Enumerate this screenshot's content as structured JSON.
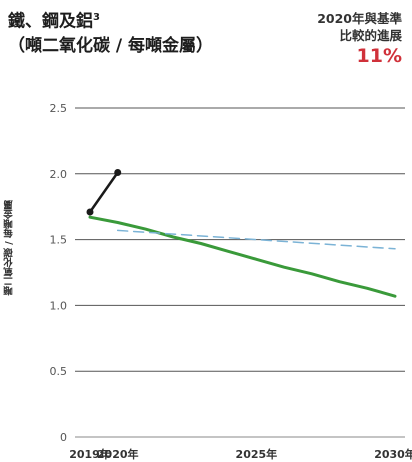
{
  "header": {
    "title_line1": "鐵、鋼及鋁",
    "title_sup": "3",
    "title_line2": "（噸二氧化碳 / 每噸金屬）"
  },
  "comparison": {
    "line1": "2020年與基準",
    "line2": "比較的進展",
    "value": "11%",
    "value_color": "#d0313a"
  },
  "chart_data": {
    "type": "line",
    "title": "鐵、鋼及鋁",
    "ylabel": "噸二氧化碳 / 每噸金屬",
    "ylim": [
      0,
      2.5
    ],
    "xlim": [
      2019,
      2030
    ],
    "y_ticks": [
      "0",
      "0.5",
      "1.0",
      "1.5",
      "2.0",
      "2.5"
    ],
    "x_ticks": [
      {
        "value": 2019,
        "label": "2019年"
      },
      {
        "value": 2020,
        "label": "2020年"
      },
      {
        "value": 2025,
        "label": "2025年"
      },
      {
        "value": 2030,
        "label": "2030年"
      }
    ],
    "grid": true,
    "series": [
      {
        "style": "actual",
        "color": "#1a1a1a",
        "x": [
          2019,
          2020
        ],
        "y": [
          1.71,
          2.01
        ]
      },
      {
        "style": "target",
        "color": "#3a9a3a",
        "x": [
          2019,
          2020,
          2021,
          2022,
          2023,
          2024,
          2025,
          2026,
          2027,
          2028,
          2029,
          2030
        ],
        "y": [
          1.67,
          1.63,
          1.58,
          1.52,
          1.47,
          1.41,
          1.35,
          1.29,
          1.24,
          1.18,
          1.13,
          1.07
        ]
      },
      {
        "style": "benchmark",
        "color": "#7bb3d6",
        "x": [
          2020,
          2025,
          2030
        ],
        "y": [
          1.57,
          1.5,
          1.43
        ]
      }
    ]
  }
}
